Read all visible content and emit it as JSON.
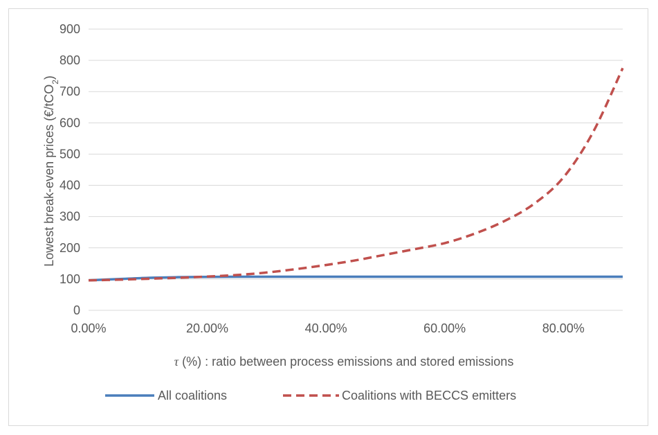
{
  "chart_data": {
    "type": "line",
    "title": "",
    "xlabel_prefix": "τ",
    "xlabel_rest": " (%) : ratio between process emissions and stored emissions",
    "ylabel_main": "Lowest break-even prices (€/tCO",
    "ylabel_sub": "2",
    "ylabel_close": ")",
    "xlim": [
      0,
      0.9
    ],
    "ylim": [
      0,
      900
    ],
    "x_ticks": [
      0,
      0.2,
      0.4,
      0.6,
      0.8
    ],
    "x_tick_labels": [
      "0.00%",
      "20.00%",
      "40.00%",
      "60.00%",
      "80.00%"
    ],
    "y_ticks": [
      0,
      100,
      200,
      300,
      400,
      500,
      600,
      700,
      800,
      900
    ],
    "y_tick_labels": [
      "0",
      "100",
      "200",
      "300",
      "400",
      "500",
      "600",
      "700",
      "800",
      "900"
    ],
    "grid": true,
    "legend_position": "bottom",
    "series": [
      {
        "name": "All coalitions",
        "color": "#4a7ebb",
        "style": "solid",
        "x": [
          0.0,
          0.05,
          0.1,
          0.15,
          0.2,
          0.25,
          0.3,
          0.4,
          0.5,
          0.6,
          0.7,
          0.8,
          0.9
        ],
        "y": [
          96,
          100,
          104,
          106,
          107,
          107.5,
          107.5,
          107.5,
          107.5,
          107.5,
          107.5,
          107.5,
          107.5
        ]
      },
      {
        "name": "Coalitions with BECCS emitters",
        "color": "#c0504d",
        "style": "dashed",
        "x": [
          0.0,
          0.05,
          0.1,
          0.15,
          0.2,
          0.25,
          0.3,
          0.35,
          0.4,
          0.45,
          0.5,
          0.55,
          0.6,
          0.65,
          0.7,
          0.75,
          0.8,
          0.85,
          0.9
        ],
        "y": [
          96,
          98,
          101,
          104,
          108,
          113,
          121,
          132,
          145,
          160,
          178,
          196,
          215,
          245,
          285,
          340,
          425,
          570,
          775
        ]
      }
    ]
  }
}
